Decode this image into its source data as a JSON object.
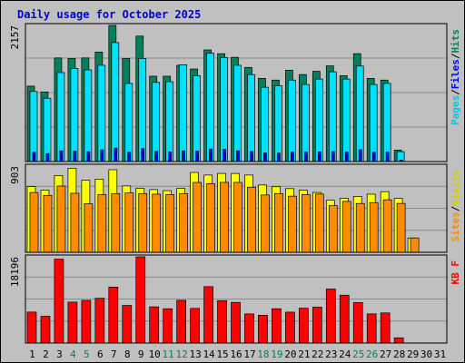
{
  "chart_data": [
    {
      "type": "bar",
      "title": "Daily usage for October 2025",
      "categories": [
        "1",
        "2",
        "3",
        "4",
        "5",
        "6",
        "7",
        "8",
        "9",
        "10",
        "11",
        "12",
        "13",
        "14",
        "15",
        "16",
        "17",
        "18",
        "19",
        "20",
        "21",
        "22",
        "23",
        "24",
        "25",
        "26",
        "27",
        "28",
        "29",
        "30",
        "31"
      ],
      "weekend_days": [
        "4",
        "5",
        "11",
        "12",
        "18",
        "19",
        "25",
        "26"
      ],
      "ylabel": [
        "Pages",
        "Files",
        "Hits"
      ],
      "ytick_label": "2157",
      "ylim": [
        0,
        2157
      ],
      "grid": true,
      "series": [
        {
          "name": "Hits",
          "color": "#00805c",
          "values": [
            1195,
            1103,
            1642,
            1633,
            1642,
            1734,
            2157,
            1633,
            1988,
            1352,
            1352,
            1525,
            1466,
            1769,
            1709,
            1651,
            1491,
            1318,
            1291,
            1447,
            1378,
            1430,
            1516,
            1360,
            1709,
            1318,
            1291,
            182,
            0,
            0,
            0
          ]
        },
        {
          "name": "Files",
          "color": "#00e0ff",
          "values": [
            1110,
            1003,
            1410,
            1475,
            1452,
            1525,
            1885,
            1237,
            1633,
            1254,
            1265,
            1534,
            1359,
            1716,
            1648,
            1525,
            1378,
            1177,
            1203,
            1291,
            1221,
            1307,
            1422,
            1306,
            1513,
            1221,
            1238,
            156,
            0,
            0,
            0
          ]
        },
        {
          "name": "Pages",
          "color": "#0000ff",
          "values": [
            145,
            126,
            170,
            164,
            155,
            186,
            212,
            150,
            205,
            161,
            154,
            170,
            166,
            198,
            195,
            171,
            159,
            137,
            135,
            148,
            148,
            153,
            158,
            150,
            187,
            146,
            148,
            24,
            0,
            0,
            0
          ]
        }
      ]
    },
    {
      "type": "bar",
      "ylabel": [
        "Sites",
        "Visits"
      ],
      "ytick_label": "903",
      "ylim": [
        0,
        903
      ],
      "grid": true,
      "series": [
        {
          "name": "Visits",
          "color": "#ffff00",
          "values": [
            688,
            651,
            804,
            880,
            755,
            766,
            865,
            695,
            670,
            657,
            646,
            670,
            836,
            809,
            826,
            826,
            809,
            705,
            687,
            667,
            651,
            627,
            545,
            566,
            586,
            609,
            635,
            564,
            150,
            0,
            0
          ]
        },
        {
          "name": "Sites",
          "color": "#ff8c00",
          "values": [
            626,
            596,
            694,
            618,
            508,
            604,
            615,
            621,
            615,
            609,
            604,
            615,
            732,
            719,
            732,
            732,
            682,
            600,
            615,
            588,
            604,
            610,
            488,
            533,
            511,
            520,
            550,
            512,
            150,
            0,
            0
          ]
        }
      ]
    },
    {
      "type": "bar",
      "ylabel": [
        "KB F"
      ],
      "ytick_label": "18196",
      "ylim": [
        0,
        18196
      ],
      "grid": true,
      "series": [
        {
          "name": "KB F",
          "color": "#ff0000",
          "values": [
            6540,
            5650,
            17700,
            8640,
            9000,
            9450,
            11800,
            7940,
            18196,
            7640,
            7240,
            9010,
            7310,
            11900,
            8950,
            8580,
            6150,
            5870,
            7240,
            6520,
            7350,
            7570,
            11400,
            10100,
            8540,
            6150,
            6350,
            1100,
            0,
            0,
            0
          ]
        }
      ]
    }
  ]
}
